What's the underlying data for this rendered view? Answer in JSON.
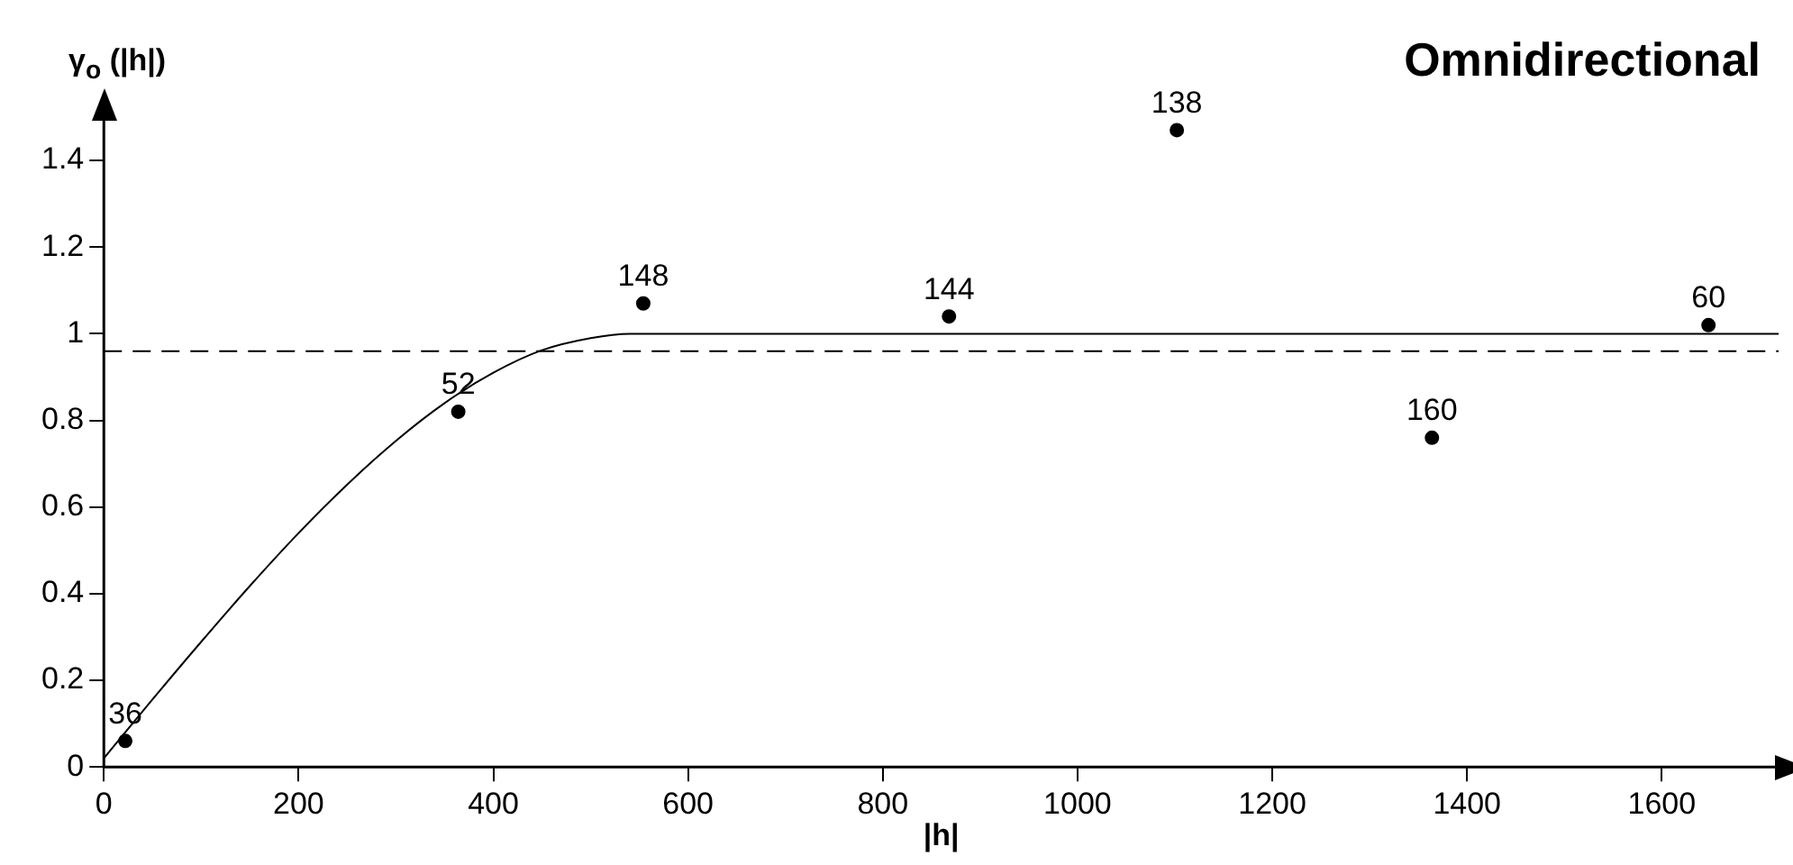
{
  "chart_data": {
    "type": "scatter",
    "title": "Omnidirectional",
    "xlabel": "|h|",
    "ylabel": "γ$_{o}$ (|h|)",
    "xlim": [
      0,
      1720
    ],
    "ylim": [
      0,
      1.5
    ],
    "xticks": [
      0,
      200,
      400,
      600,
      800,
      1000,
      1200,
      1400,
      1600
    ],
    "yticks": [
      0,
      0.2,
      0.4,
      0.6,
      0.8,
      1,
      1.2,
      1.4
    ],
    "grid": false,
    "series": [
      {
        "marker": "circle",
        "color": "#000000",
        "x": [
          22,
          364,
          554,
          868,
          1102,
          1364,
          1648
        ],
        "values": [
          0.06,
          0.82,
          1.07,
          1.04,
          1.47,
          0.76,
          1.02
        ]
      },
      {
        "type": "line",
        "marker": "none",
        "color": "#000000",
        "line_style": "solid",
        "x": [
          0,
          50,
          100,
          150,
          200,
          250,
          300,
          350,
          400,
          450,
          500,
          540,
          1720
        ],
        "values": [
          0.02,
          0.156,
          0.289,
          0.418,
          0.54,
          0.652,
          0.753,
          0.84,
          0.91,
          0.962,
          0.99,
          1,
          1
        ]
      }
    ],
    "ref_lines": [
      {
        "axis": "y",
        "value": 0.96,
        "line_style": "dashed",
        "color": "#000000"
      }
    ],
    "annotations": [
      {
        "text": "36",
        "x": 22,
        "y": 0.06
      },
      {
        "text": "52",
        "x": 364,
        "y": 0.82
      },
      {
        "text": "148",
        "x": 554,
        "y": 1.07
      },
      {
        "text": "144",
        "x": 868,
        "y": 1.04
      },
      {
        "text": "138",
        "x": 1102,
        "y": 1.47
      },
      {
        "text": "160",
        "x": 1364,
        "y": 0.76
      },
      {
        "text": "60",
        "x": 1648,
        "y": 1.02
      }
    ]
  }
}
